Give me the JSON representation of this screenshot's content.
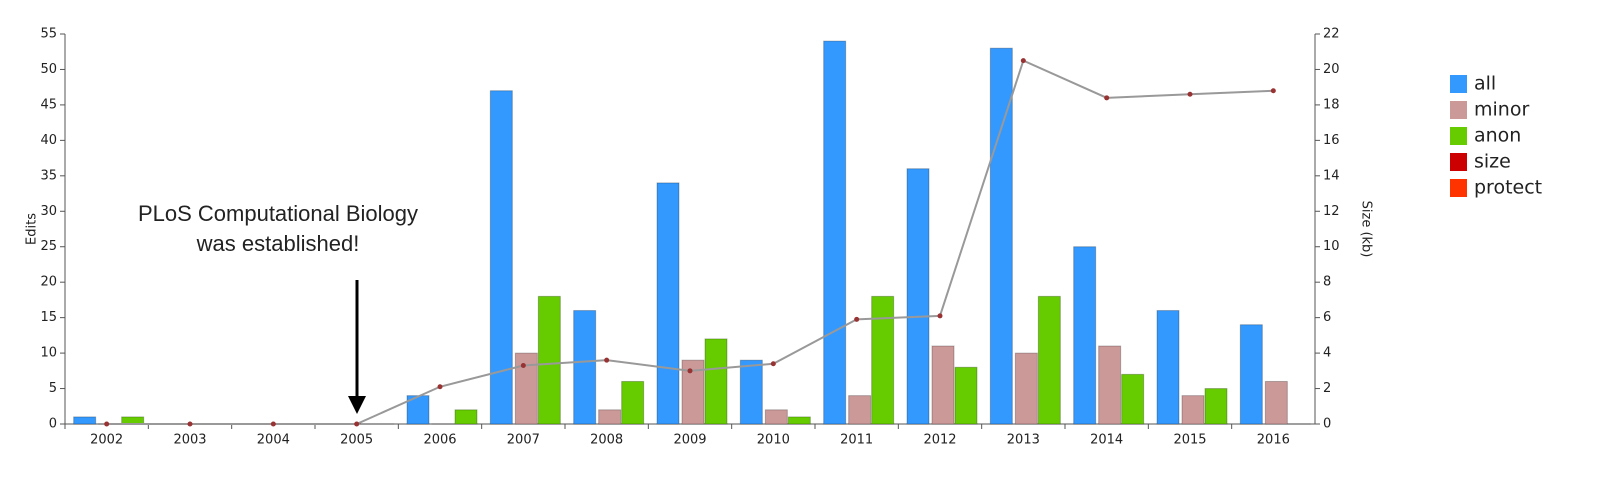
{
  "chart_data": {
    "type": "bar",
    "categories": [
      "2002",
      "2003",
      "2004",
      "2005",
      "2006",
      "2007",
      "2008",
      "2009",
      "2010",
      "2011",
      "2012",
      "2013",
      "2014",
      "2015",
      "2016"
    ],
    "series": [
      {
        "name": "all",
        "color": "#3399ff",
        "values": [
          1,
          0,
          0,
          0,
          4,
          47,
          16,
          34,
          9,
          54,
          36,
          53,
          25,
          16,
          14
        ]
      },
      {
        "name": "minor",
        "color": "#cc9999",
        "values": [
          0,
          0,
          0,
          0,
          0,
          10,
          2,
          9,
          2,
          4,
          11,
          10,
          11,
          4,
          6
        ]
      },
      {
        "name": "anon",
        "color": "#66cc00",
        "values": [
          1,
          0,
          0,
          0,
          2,
          18,
          6,
          12,
          1,
          18,
          8,
          18,
          7,
          5,
          0
        ]
      },
      {
        "name": "size",
        "color": "#cc0000",
        "type": "line",
        "axis": "y2",
        "values": [
          0,
          0,
          0,
          0,
          2.1,
          3.3,
          3.6,
          3.0,
          3.4,
          5.9,
          6.1,
          20.5,
          18.4,
          18.6,
          18.8
        ]
      },
      {
        "name": "protect",
        "color": "#ff3300",
        "values": [
          null,
          null,
          null,
          null,
          null,
          null,
          null,
          null,
          null,
          null,
          null,
          null,
          null,
          null,
          null
        ]
      }
    ],
    "ylabel": "Edits",
    "y2label": "Size (kb)",
    "ylim": [
      0,
      55
    ],
    "yticks": [
      0,
      5,
      10,
      15,
      20,
      25,
      30,
      35,
      40,
      45,
      50,
      55
    ],
    "y2lim": [
      0,
      22
    ],
    "y2ticks": [
      0,
      2,
      4,
      6,
      8,
      10,
      12,
      14,
      16,
      18,
      20,
      22
    ],
    "annotation": [
      "PLoS Computational Biology",
      "was established!"
    ]
  }
}
